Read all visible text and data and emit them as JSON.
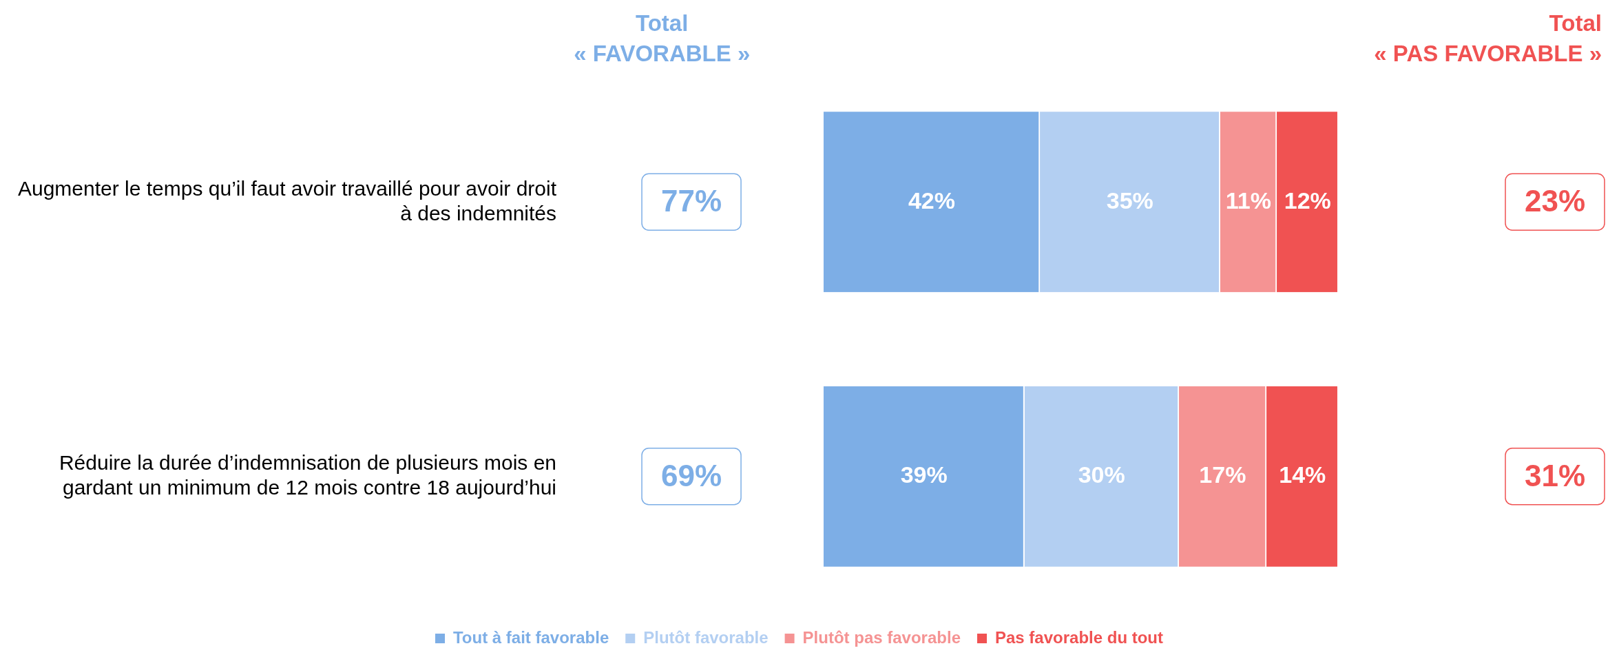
{
  "chart_data": {
    "type": "bar",
    "orientation": "horizontal",
    "stacked": true,
    "tick_labels": "y",
    "categories": [
      "Augmenter le temps qu’il faut avoir travaillé pour avoir droit à des indemnités",
      "Réduire la durée d’indemnisation de plusieurs mois en gardant un minimum de 12 mois contre 18 aujourd’hui"
    ],
    "series": [
      {
        "name": "Tout à fait favorable",
        "color": "#7daee6",
        "values": [
          42,
          39
        ],
        "value_labels": [
          "42%",
          "39%"
        ]
      },
      {
        "name": "Plutôt favorable",
        "color": "#b3cff2",
        "values": [
          35,
          30
        ],
        "value_labels": [
          "35%",
          "30%"
        ]
      },
      {
        "name": "Plutôt pas favorable",
        "color": "#f59393",
        "values": [
          11,
          17
        ],
        "value_labels": [
          "11%",
          "17%"
        ]
      },
      {
        "name": "Pas favorable du tout",
        "color": "#f05252",
        "values": [
          12,
          14
        ],
        "value_labels": [
          "12%",
          "14%"
        ]
      }
    ],
    "annotations": [
      "Total « FAVORABLE »",
      "Total « PAS FAVORABLE »",
      "77%",
      "23%",
      "69%",
      "31%"
    ],
    "legend": "bottom"
  }
}
